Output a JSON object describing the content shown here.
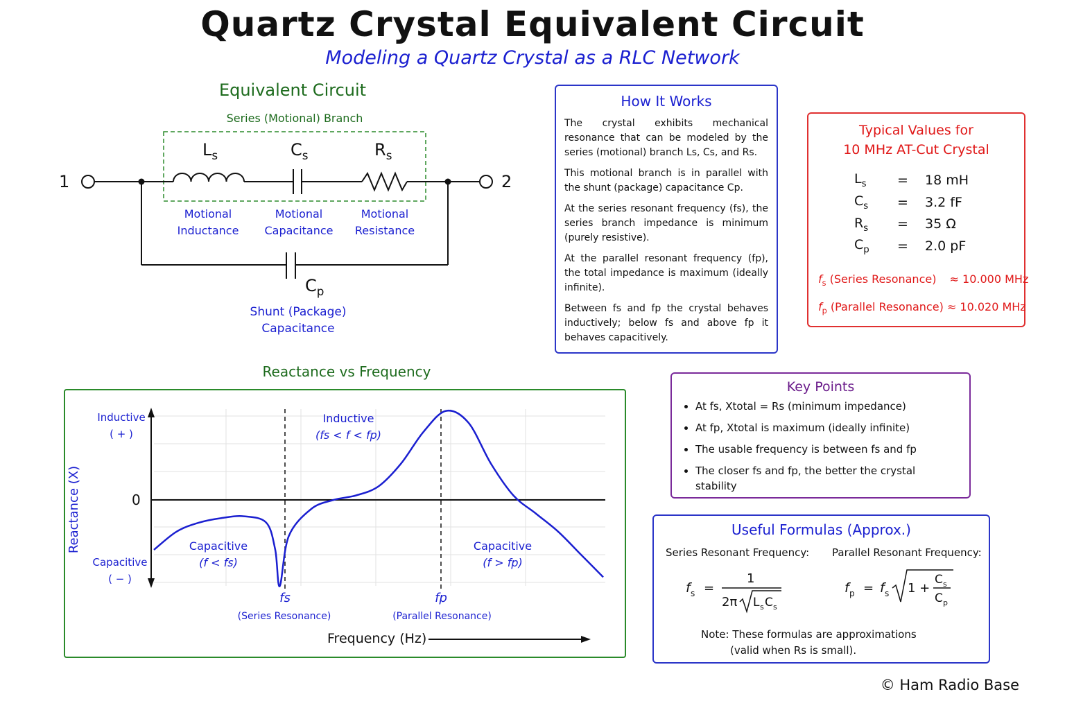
{
  "header": {
    "title": "Quartz Crystal Equivalent Circuit",
    "subtitle": "Modeling a Quartz Crystal as a RLC Network"
  },
  "circuit": {
    "heading": "Equivalent Circuit",
    "branch_label": "Series (Motional) Branch",
    "terminal_1": "1",
    "terminal_2": "2",
    "ls_symbol": "L",
    "cs_symbol": "C",
    "rs_symbol": "R",
    "cp_symbol": "C",
    "sub_s": "s",
    "sub_p": "p",
    "ls_caption": [
      "Motional",
      "Inductance"
    ],
    "cs_caption": [
      "Motional",
      "Capacitance"
    ],
    "rs_caption": [
      "Motional",
      "Resistance"
    ],
    "cp_caption": [
      "Shunt (Package)",
      "Capacitance"
    ]
  },
  "how_it_works": {
    "heading": "How It Works",
    "p1": "The crystal exhibits mechanical resonance that can be modeled by the series (motional) branch Ls, Cs, and Rs.",
    "p2": "This motional branch is in parallel with the shunt (package) capacitance Cp.",
    "p3": "At the series resonant frequency (fs), the series branch impedance is minimum (purely resistive).",
    "p4": "At the parallel resonant frequency (fp), the total impedance is maximum (ideally infinite).",
    "p5": "Between fs and fp the crystal behaves inductively; below fs and above fp it behaves capacitively."
  },
  "typical_values": {
    "heading_line1": "Typical Values for",
    "heading_line2": "10 MHz AT-Cut Crystal",
    "rows": [
      {
        "sym": "L",
        "sub": "s",
        "eq": "=",
        "val": "18 mH"
      },
      {
        "sym": "C",
        "sub": "s",
        "eq": "=",
        "val": "3.2 fF"
      },
      {
        "sym": "R",
        "sub": "s",
        "eq": "=",
        "val": "35 Ω"
      },
      {
        "sym": "C",
        "sub": "p",
        "eq": "=",
        "val": "2.0 pF"
      }
    ],
    "fs_label": "(Series Resonance)",
    "fs_value": "≈ 10.000 MHz",
    "fp_label": "(Parallel Resonance)",
    "fp_value": "≈ 10.020 MHz"
  },
  "chart": {
    "heading": "Reactance vs Frequency",
    "ylabel": "Reactance (X)",
    "xlabel": "Frequency (Hz)",
    "zero_label": "0",
    "inductive_axis": [
      "Inductive",
      "( + )"
    ],
    "capacitive_axis": [
      "Capacitive",
      "( − )"
    ],
    "region_inductive": [
      "Inductive",
      "(fs < f < fp)"
    ],
    "region_cap_left": [
      "Capacitive",
      "(f < fs)"
    ],
    "region_cap_right": [
      "Capacitive",
      "(f > fp)"
    ],
    "fs_marker": "fs",
    "fs_marker_caption": "(Series Resonance)",
    "fp_marker": "fp",
    "fp_marker_caption": "(Parallel Resonance)",
    "curve_color": "#1a1fd0"
  },
  "chart_data": {
    "type": "line",
    "title": "Reactance vs Frequency",
    "xlabel": "Frequency (Hz)",
    "ylabel": "Reactance (X)",
    "grid": true,
    "x": [
      0,
      0.05,
      0.1,
      0.15,
      0.2,
      0.25,
      0.27,
      0.28,
      0.3,
      0.35,
      0.4,
      0.45,
      0.5,
      0.55,
      0.6,
      0.65,
      0.7,
      0.75,
      0.8,
      0.85,
      0.9,
      0.95,
      1.0
    ],
    "series": [
      {
        "values": [
          -0.55,
          -0.35,
          -0.25,
          -0.2,
          -0.18,
          -0.25,
          -0.55,
          -0.95,
          -0.4,
          -0.1,
          0.0,
          0.05,
          0.15,
          0.4,
          0.75,
          0.98,
          0.85,
          0.4,
          0.05,
          -0.15,
          -0.35,
          -0.6,
          -0.85
        ]
      }
    ]
  },
  "key_points": {
    "heading": "Key Points",
    "items": [
      "At fs, Xtotal = Rs (minimum impedance)",
      "At fp, Xtotal is maximum (ideally infinite)",
      "The usable frequency is between fs and fp",
      "The closer fs and fp, the better the crystal stability"
    ]
  },
  "formulas": {
    "heading": "Useful Formulas (Approx.)",
    "series_label": "Series Resonant Frequency:",
    "parallel_label": "Parallel Resonant Frequency:",
    "note_line1": "Note: These formulas are approximations",
    "note_line2": "(valid when Rs is small)."
  },
  "footer": {
    "copyright": "© Ham Radio Base"
  }
}
